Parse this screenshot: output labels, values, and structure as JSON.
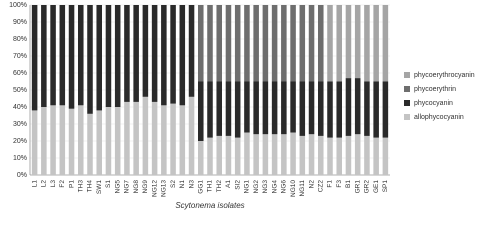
{
  "chart_data": {
    "type": "stacked_bar",
    "x_label": "Scytonema isolates",
    "categories": [
      "L1",
      "L2",
      "L3",
      "F2",
      "P1",
      "TH3",
      "TH4",
      "SW1",
      "S1",
      "NG5",
      "NG7",
      "NG8",
      "NG9",
      "NG12",
      "NG13",
      "S2",
      "N1",
      "N3",
      "GG1",
      "TH1",
      "TH2",
      "A1",
      "SI2",
      "NG1",
      "NG2",
      "NG3",
      "NG4",
      "NG6",
      "NG10",
      "NG11",
      "N2",
      "CZ2",
      "F1",
      "F3",
      "B1",
      "GR1",
      "GR2",
      "GE1",
      "SP1"
    ],
    "series": [
      {
        "name": "allophycocyanin",
        "color": "#c4c4c4",
        "values": [
          38,
          40,
          41,
          41,
          39,
          41,
          36,
          38,
          40,
          40,
          43,
          43,
          46,
          43,
          41,
          42,
          41,
          46,
          20,
          22,
          23,
          23,
          22,
          25,
          24,
          24,
          24,
          24,
          25,
          23,
          24,
          23,
          22,
          22,
          23,
          24,
          23,
          22,
          22
        ]
      },
      {
        "name": "phycocyanin",
        "color": "#2a2a2a",
        "values": [
          62,
          60,
          59,
          59,
          61,
          59,
          64,
          62,
          60,
          60,
          57,
          57,
          54,
          57,
          59,
          58,
          59,
          54,
          35,
          33,
          32,
          32,
          33,
          30,
          31,
          31,
          31,
          31,
          30,
          32,
          31,
          32,
          33,
          33,
          34,
          33,
          32,
          33,
          33
        ]
      },
      {
        "name": "phycoerythrin",
        "color": "#6e6e6e",
        "values": [
          0,
          0,
          0,
          0,
          0,
          0,
          0,
          0,
          0,
          0,
          0,
          0,
          0,
          0,
          0,
          0,
          0,
          0,
          45,
          45,
          45,
          45,
          45,
          45,
          45,
          45,
          45,
          45,
          45,
          45,
          45,
          45,
          0,
          0,
          0,
          0,
          0,
          0,
          0
        ]
      },
      {
        "name": "phycoerythrocyanin",
        "color": "#a5a5a5",
        "values": [
          0,
          0,
          0,
          0,
          0,
          0,
          0,
          0,
          0,
          0,
          0,
          0,
          0,
          0,
          0,
          0,
          0,
          0,
          0,
          0,
          0,
          0,
          0,
          0,
          0,
          0,
          0,
          0,
          0,
          0,
          0,
          0,
          45,
          45,
          43,
          43,
          45,
          45,
          45
        ]
      }
    ],
    "ylim": [
      0,
      100
    ],
    "yticks": [
      {
        "value": 0,
        "label": "0%"
      },
      {
        "value": 10,
        "label": "10%"
      },
      {
        "value": 20,
        "label": "20%"
      },
      {
        "value": 30,
        "label": "30%"
      },
      {
        "value": 40,
        "label": "40%"
      },
      {
        "value": 50,
        "label": "50%"
      },
      {
        "value": 60,
        "label": "60%"
      },
      {
        "value": 70,
        "label": "70%"
      },
      {
        "value": 80,
        "label": "80%"
      },
      {
        "value": 90,
        "label": "90%"
      },
      {
        "value": 100,
        "label": "100%"
      }
    ],
    "legend": "right"
  }
}
